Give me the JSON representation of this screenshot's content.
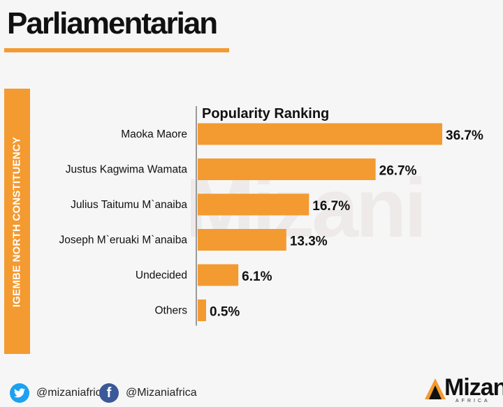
{
  "header": {
    "title": "Parliamentarian"
  },
  "sidebar": {
    "label": "IGEMBE NORTH CONSTITUENCY"
  },
  "watermark": {
    "text": "Mizani"
  },
  "colors": {
    "accent": "#f39a31",
    "axis": "#999999",
    "text": "#111111"
  },
  "chart_data": {
    "type": "bar",
    "orientation": "horizontal",
    "title": "Popularity Ranking",
    "categories": [
      "Maoka Maore",
      "Justus Kagwima Wamata",
      "Julius Taitumu M`anaiba",
      "Joseph  M`eruaki M`anaiba",
      "Undecided",
      "Others"
    ],
    "values": [
      36.7,
      26.7,
      16.7,
      13.3,
      6.1,
      0.5
    ],
    "value_labels": [
      "36.7%",
      "26.7%",
      "16.7%",
      "13.3%",
      "6.1%",
      "0.5%"
    ],
    "xlim": [
      0,
      36.7
    ],
    "grid": false,
    "legend": "none"
  },
  "footer": {
    "twitter_icon": "twitter-icon",
    "twitter_handle": "@mizaniafrica",
    "facebook_icon": "facebook-icon",
    "facebook_handle": "@Mizaniafrica",
    "logo_text": "Mizani",
    "logo_sub": "AFRICA"
  }
}
